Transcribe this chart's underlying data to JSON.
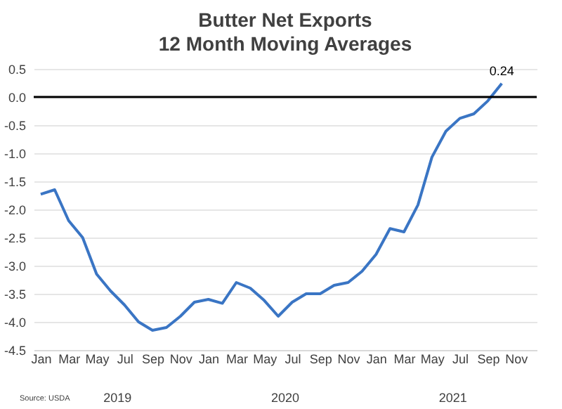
{
  "chart_data": {
    "type": "line",
    "title": "Butter Net Exports\n12 Month Moving Averages",
    "categories": [
      "Jan",
      null,
      "Mar",
      null,
      "May",
      null,
      "Jul",
      null,
      "Sep",
      null,
      "Nov",
      null,
      "Jan",
      null,
      "Mar",
      null,
      "May",
      null,
      "Jul",
      null,
      "Sep",
      null,
      "Nov",
      null,
      "Jan",
      null,
      "Mar",
      null,
      "May",
      null,
      "Jul",
      null,
      "Sep",
      null,
      "Nov",
      null
    ],
    "series": [
      {
        "color": "#3a75c4",
        "values": [
          -1.73,
          -1.65,
          -2.2,
          -2.5,
          -3.15,
          -3.45,
          -3.7,
          -4.0,
          -4.15,
          -4.1,
          -3.9,
          -3.65,
          -3.6,
          -3.67,
          -3.3,
          -3.4,
          -3.62,
          -3.9,
          -3.65,
          -3.5,
          -3.5,
          -3.35,
          -3.3,
          -3.1,
          -2.8,
          -2.34,
          -2.4,
          -1.92,
          -1.07,
          -0.61,
          -0.38,
          -0.3,
          -0.07,
          0.24,
          null,
          null
        ],
        "value_labels": [
          null,
          null,
          null,
          null,
          null,
          null,
          null,
          null,
          null,
          null,
          null,
          null,
          null,
          null,
          null,
          null,
          null,
          null,
          null,
          null,
          null,
          null,
          null,
          null,
          null,
          null,
          null,
          null,
          null,
          null,
          null,
          null,
          null,
          "0.24",
          null,
          null
        ]
      }
    ],
    "ylim": [
      -4.5,
      0.5
    ],
    "yticks": [
      -4.5,
      {
        "value": -4.0,
        "label": "-4.0"
      },
      {
        "value": -3.5,
        "label": "-3.5"
      },
      {
        "value": -3.0,
        "label": "-3.0"
      },
      {
        "value": -2.5,
        "label": "-2.5"
      },
      {
        "value": -2.0,
        "label": "-2.0"
      },
      {
        "value": -1.5,
        "label": "-1.5"
      },
      {
        "value": -1.0,
        "label": "-1.0"
      },
      {
        "value": -0.5,
        "label": "-0.5"
      },
      {
        "value": 0,
        "label": "0.0"
      },
      0.5
    ],
    "grid": "y",
    "ref_lines": [
      {
        "axis": "y",
        "value": 0,
        "color": "#000000"
      }
    ],
    "annotations": [
      "Source: USDA",
      "2019",
      "2020",
      "2021"
    ]
  }
}
